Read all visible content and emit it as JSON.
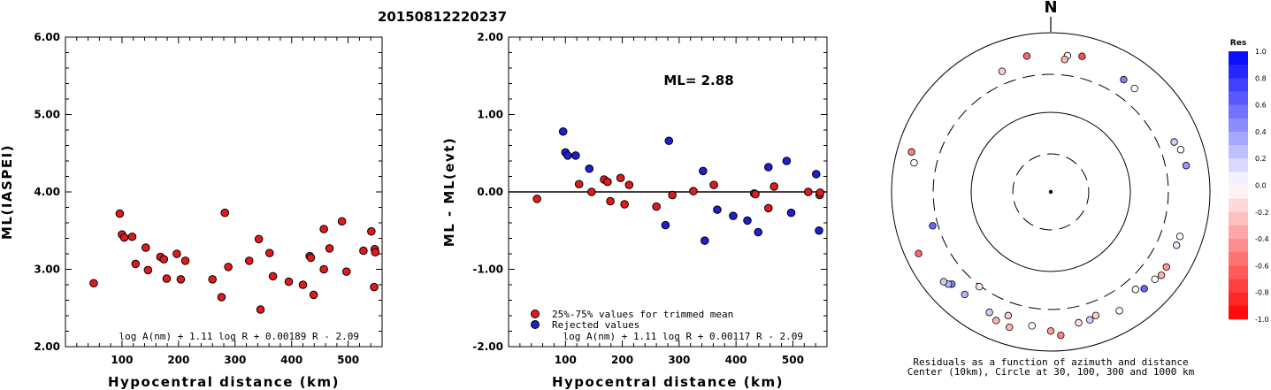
{
  "chart_data": [
    {
      "type": "scatter",
      "title": "20150812220237",
      "xlabel": "Hypocentral distance (km)",
      "ylabel": "ML(IASPEI)",
      "xlim": [
        0,
        560
      ],
      "ylim": [
        2.0,
        6.0
      ],
      "xticks": [
        "100",
        "200",
        "300",
        "400",
        "500"
      ],
      "yticks": [
        "2.00",
        "3.00",
        "4.00",
        "5.00",
        "6.00"
      ],
      "formula": "log A(nm) + 1.11 log R + 0.00189 R - 2.09",
      "grid": false,
      "points_color": "#e31a1c",
      "points": [
        [
          50,
          2.82
        ],
        [
          96,
          3.72
        ],
        [
          100,
          3.45
        ],
        [
          104,
          3.41
        ],
        [
          118,
          3.42
        ],
        [
          124,
          3.07
        ],
        [
          142,
          3.28
        ],
        [
          146,
          2.99
        ],
        [
          168,
          3.16
        ],
        [
          174,
          3.13
        ],
        [
          179,
          2.88
        ],
        [
          197,
          3.2
        ],
        [
          204,
          2.87
        ],
        [
          212,
          3.11
        ],
        [
          260,
          2.87
        ],
        [
          276,
          2.64
        ],
        [
          282,
          3.73
        ],
        [
          288,
          3.03
        ],
        [
          325,
          3.11
        ],
        [
          342,
          3.39
        ],
        [
          345,
          2.48
        ],
        [
          361,
          3.21
        ],
        [
          367,
          2.91
        ],
        [
          395,
          2.84
        ],
        [
          420,
          2.8
        ],
        [
          432,
          3.17
        ],
        [
          434,
          3.15
        ],
        [
          439,
          2.67
        ],
        [
          457,
          3.0
        ],
        [
          457,
          3.52
        ],
        [
          467,
          3.27
        ],
        [
          489,
          3.62
        ],
        [
          497,
          2.97
        ],
        [
          527,
          3.24
        ],
        [
          541,
          3.49
        ],
        [
          546,
          2.77
        ],
        [
          547,
          3.26
        ],
        [
          548,
          3.22
        ]
      ]
    },
    {
      "type": "scatter",
      "xlabel": "Hypocentral distance (km)",
      "ylabel": "ML - ML(evt)",
      "xlim": [
        0,
        560
      ],
      "ylim": [
        -2.0,
        2.0
      ],
      "xticks": [
        "100",
        "200",
        "300",
        "400",
        "500"
      ],
      "yticks": [
        "-2.00",
        "-1.00",
        "0.00",
        "1.00",
        "2.00"
      ],
      "annotation": "ML= 2.88",
      "formula": "log A(nm) + 1.11 log R + 0.00117 R - 2.09",
      "legend": [
        {
          "label": "25%-75% values for trimmed mean",
          "color": "#e31a1c"
        },
        {
          "label": "Rejected values",
          "color": "#1f1fd0"
        }
      ],
      "series": [
        {
          "name": "25%-75% values for trimmed mean",
          "color": "#e31a1c",
          "points": [
            [
              50,
              -0.09
            ],
            [
              124,
              0.1
            ],
            [
              146,
              0.0
            ],
            [
              168,
              0.16
            ],
            [
              174,
              0.13
            ],
            [
              179,
              -0.12
            ],
            [
              197,
              0.18
            ],
            [
              204,
              -0.16
            ],
            [
              212,
              0.09
            ],
            [
              260,
              -0.19
            ],
            [
              288,
              -0.04
            ],
            [
              325,
              0.01
            ],
            [
              361,
              0.09
            ],
            [
              432,
              -0.02
            ],
            [
              434,
              -0.03
            ],
            [
              457,
              -0.21
            ],
            [
              467,
              0.07
            ],
            [
              527,
              0.0
            ],
            [
              547,
              -0.04
            ],
            [
              548,
              -0.01
            ]
          ]
        },
        {
          "name": "Rejected values",
          "color": "#1f1fd0",
          "points": [
            [
              96,
              0.78
            ],
            [
              100,
              0.51
            ],
            [
              104,
              0.47
            ],
            [
              118,
              0.47
            ],
            [
              142,
              0.3
            ],
            [
              276,
              -0.43
            ],
            [
              282,
              0.66
            ],
            [
              342,
              0.27
            ],
            [
              345,
              -0.63
            ],
            [
              367,
              -0.23
            ],
            [
              395,
              -0.31
            ],
            [
              420,
              -0.37
            ],
            [
              439,
              -0.52
            ],
            [
              457,
              0.32
            ],
            [
              489,
              0.4
            ],
            [
              497,
              -0.27
            ],
            [
              541,
              0.23
            ],
            [
              546,
              -0.5
            ]
          ]
        }
      ]
    },
    {
      "type": "scatter",
      "subtype": "polar",
      "north_label": "N",
      "caption_line1": "Residuals as a function of azimuth and distance",
      "caption_line2": "Center (10km), Circle at 30, 100, 300 and 1000 km",
      "rings": [
        {
          "distance_km": 30,
          "style": "dashed"
        },
        {
          "distance_km": 100,
          "style": "solid"
        },
        {
          "distance_km": 300,
          "style": "dashed"
        },
        {
          "distance_km": 1000,
          "style": "solid"
        }
      ],
      "stations": [
        {
          "azimuth": 338,
          "distance_km": 430,
          "residual": -0.2
        },
        {
          "azimuth": 350,
          "distance_km": 540,
          "residual": -0.6
        },
        {
          "azimuth": 7,
          "distance_km": 530,
          "residual": 0.0
        },
        {
          "azimuth": 6,
          "distance_km": 470,
          "residual": -0.3
        },
        {
          "azimuth": 13,
          "distance_km": 560,
          "residual": -0.7
        },
        {
          "azimuth": 33,
          "distance_km": 480,
          "residual": 0.5
        },
        {
          "azimuth": 39,
          "distance_km": 470,
          "residual": 0.0
        },
        {
          "azimuth": 68,
          "distance_km": 470,
          "residual": 0.2
        },
        {
          "azimuth": 72,
          "distance_km": 520,
          "residual": 0.0
        },
        {
          "azimuth": 79,
          "distance_km": 540,
          "residual": 0.4
        },
        {
          "azimuth": 109,
          "distance_km": 520,
          "residual": 0.0
        },
        {
          "azimuth": 113,
          "distance_km": 520,
          "residual": 0.1
        },
        {
          "azimuth": 123,
          "distance_km": 540,
          "residual": -0.4
        },
        {
          "azimuth": 127,
          "distance_km": 550,
          "residual": -0.3
        },
        {
          "azimuth": 130,
          "distance_km": 510,
          "residual": 0.0
        },
        {
          "azimuth": 136,
          "distance_km": 490,
          "residual": 0.6
        },
        {
          "azimuth": 139,
          "distance_km": 420,
          "residual": 0.0
        },
        {
          "azimuth": 150,
          "distance_km": 530,
          "residual": 0.0
        },
        {
          "azimuth": 160,
          "distance_km": 450,
          "residual": -0.2
        },
        {
          "azimuth": 163,
          "distance_km": 480,
          "residual": 0.2
        },
        {
          "azimuth": 168,
          "distance_km": 480,
          "residual": -0.1
        },
        {
          "azimuth": 176,
          "distance_km": 640,
          "residual": -0.5
        },
        {
          "azimuth": 180,
          "distance_km": 560,
          "residual": -0.4
        },
        {
          "azimuth": 188,
          "distance_km": 500,
          "residual": 0.0
        },
        {
          "azimuth": 197,
          "distance_km": 600,
          "residual": -0.3
        },
        {
          "azimuth": 199,
          "distance_km": 440,
          "residual": -0.2
        },
        {
          "azimuth": 203,
          "distance_km": 570,
          "residual": -0.3
        },
        {
          "azimuth": 207,
          "distance_km": 500,
          "residual": 0.2
        },
        {
          "azimuth": 217,
          "distance_km": 310,
          "residual": -0.1
        },
        {
          "azimuth": 220,
          "distance_km": 480,
          "residual": 0.3
        },
        {
          "azimuth": 227,
          "distance_km": 500,
          "residual": 0.5
        },
        {
          "azimuth": 228,
          "distance_km": 540,
          "residual": 0.3
        },
        {
          "azimuth": 230,
          "distance_km": 570,
          "residual": 0.2
        },
        {
          "azimuth": 245,
          "distance_km": 680,
          "residual": -0.6
        },
        {
          "azimuth": 254,
          "distance_km": 350,
          "residual": 0.6
        },
        {
          "azimuth": 282,
          "distance_km": 570,
          "residual": 0.0
        },
        {
          "azimuth": 286,
          "distance_km": 660,
          "residual": -0.5
        }
      ],
      "colorbar": {
        "title": "Res",
        "ticks": [
          "1.0",
          "0.8",
          "0.6",
          "0.4",
          "0.2",
          "0.0",
          "-0.2",
          "-0.4",
          "-0.6",
          "-0.8",
          "-1.0"
        ],
        "positive_color": "#0000ff",
        "negative_color": "#ff0000",
        "zero_color": "#ffffff"
      }
    }
  ]
}
